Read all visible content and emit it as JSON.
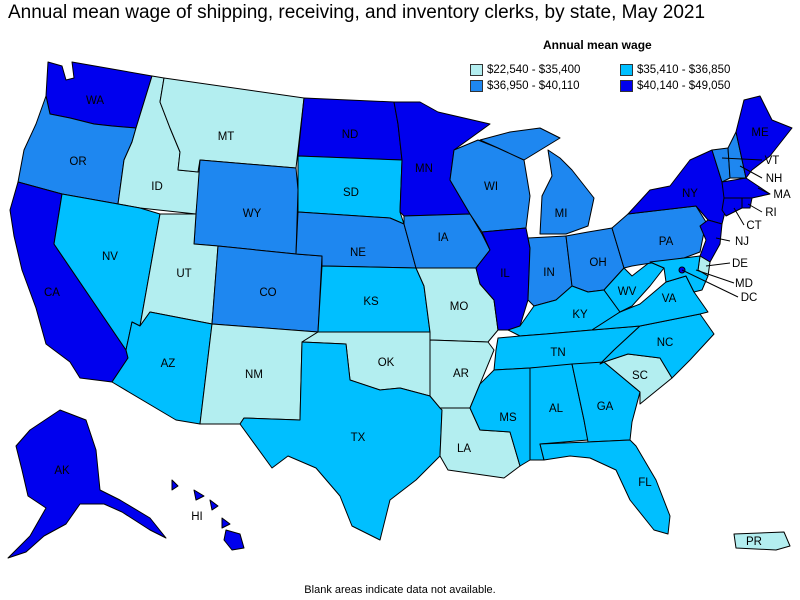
{
  "title": "Annual mean wage of shipping, receiving, and inventory clerks, by state, May 2021",
  "legend": {
    "title": "Annual mean wage",
    "items": [
      {
        "label": "$22,540 - $35,400",
        "color": "#b3eef0"
      },
      {
        "label": "$35,410 - $36,850",
        "color": "#00bfff"
      },
      {
        "label": "$36,950 - $40,110",
        "color": "#1e87f0"
      },
      {
        "label": "$40,140 - $49,050",
        "color": "#0000ee"
      }
    ]
  },
  "footnote": "Blank areas indicate data not available.",
  "states": {
    "WA": {
      "label": "WA",
      "bin": 3
    },
    "OR": {
      "label": "OR",
      "bin": 2
    },
    "CA": {
      "label": "CA",
      "bin": 3
    },
    "ID": {
      "label": "ID",
      "bin": 0
    },
    "NV": {
      "label": "NV",
      "bin": 1
    },
    "MT": {
      "label": "MT",
      "bin": 0
    },
    "WY": {
      "label": "WY",
      "bin": 2
    },
    "UT": {
      "label": "UT",
      "bin": 0
    },
    "AZ": {
      "label": "AZ",
      "bin": 1
    },
    "CO": {
      "label": "CO",
      "bin": 2
    },
    "NM": {
      "label": "NM",
      "bin": 0
    },
    "ND": {
      "label": "ND",
      "bin": 3
    },
    "SD": {
      "label": "SD",
      "bin": 1
    },
    "NE": {
      "label": "NE",
      "bin": 2
    },
    "KS": {
      "label": "KS",
      "bin": 1
    },
    "OK": {
      "label": "OK",
      "bin": 0
    },
    "TX": {
      "label": "TX",
      "bin": 1
    },
    "MN": {
      "label": "MN",
      "bin": 3
    },
    "IA": {
      "label": "IA",
      "bin": 2
    },
    "MO": {
      "label": "MO",
      "bin": 0
    },
    "AR": {
      "label": "AR",
      "bin": 0
    },
    "LA": {
      "label": "LA",
      "bin": 0
    },
    "WI": {
      "label": "WI",
      "bin": 2
    },
    "IL": {
      "label": "IL",
      "bin": 3
    },
    "MI": {
      "label": "MI",
      "bin": 2
    },
    "IN": {
      "label": "IN",
      "bin": 2
    },
    "OH": {
      "label": "OH",
      "bin": 2
    },
    "KY": {
      "label": "KY",
      "bin": 1
    },
    "TN": {
      "label": "TN",
      "bin": 1
    },
    "MS": {
      "label": "MS",
      "bin": 1
    },
    "AL": {
      "label": "AL",
      "bin": 1
    },
    "GA": {
      "label": "GA",
      "bin": 1
    },
    "FL": {
      "label": "FL",
      "bin": 1
    },
    "SC": {
      "label": "SC",
      "bin": 0
    },
    "NC": {
      "label": "NC",
      "bin": 1
    },
    "VA": {
      "label": "VA",
      "bin": 1
    },
    "WV": {
      "label": "WV",
      "bin": 1
    },
    "PA": {
      "label": "PA",
      "bin": 2
    },
    "NY": {
      "label": "NY",
      "bin": 3
    },
    "VT": {
      "label": "VT",
      "bin": 2
    },
    "NH": {
      "label": "NH",
      "bin": 2
    },
    "ME": {
      "label": "ME",
      "bin": 3
    },
    "MA": {
      "label": "MA",
      "bin": 3
    },
    "RI": {
      "label": "RI",
      "bin": 3
    },
    "CT": {
      "label": "CT",
      "bin": 3
    },
    "NJ": {
      "label": "NJ",
      "bin": 3
    },
    "DE": {
      "label": "DE",
      "bin": 0
    },
    "MD": {
      "label": "MD",
      "bin": 1
    },
    "DC": {
      "label": "DC",
      "bin": 3
    },
    "AK": {
      "label": "AK",
      "bin": 3
    },
    "HI": {
      "label": "HI",
      "bin": 3
    },
    "PR": {
      "label": "PR",
      "bin": 0
    }
  }
}
